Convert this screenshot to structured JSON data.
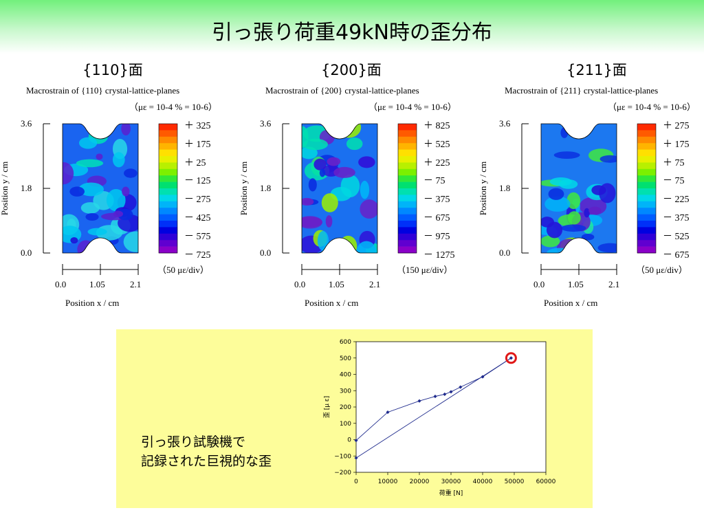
{
  "slide": {
    "title": "引っ張り荷重49kN時の歪分布",
    "accent_green": "#72f07c",
    "note_bg": "#fdfd9a",
    "note_line1": "引っ張り試験機で",
    "note_line2": "記録された巨視的な歪"
  },
  "maps": [
    {
      "section": "{110}面",
      "caption1": "Macrostrain of {110} crystal-lattice-planes",
      "caption2": "（με = 10-4 % = 10-6）",
      "scale_labels": [
        "＋ 325",
        "＋ 175",
        "＋ 25",
        "－ 125",
        "－ 275",
        "－ 425",
        "－ 575",
        "－ 725"
      ],
      "div_label": "（50 με/div）",
      "y_ticks": [
        "3.6",
        "1.8",
        "0.0"
      ],
      "x_ticks": [
        "0.0",
        "1.05",
        "2.1"
      ],
      "ylabel": "Position y / cm",
      "xlabel": "Position x / cm"
    },
    {
      "section": "{200}面",
      "caption1": "Macrostrain of {200} crystal-lattice-planes",
      "caption2": "（με = 10-4 % = 10-6）",
      "scale_labels": [
        "＋ 825",
        "＋ 525",
        "＋ 225",
        "－ 75",
        "－ 375",
        "－ 675",
        "－ 975",
        "－ 1275"
      ],
      "div_label": "（150 με/div）",
      "y_ticks": [
        "3.6",
        "1.8",
        "0.0"
      ],
      "x_ticks": [
        "0.0",
        "1.05",
        "2.1"
      ],
      "ylabel": "Position y / cm",
      "xlabel": "Position x / cm"
    },
    {
      "section": "{211}面",
      "caption1": "Macrostrain of {211} crystal-lattice-planes",
      "caption2": "（με = 10-4 % = 10-6）",
      "scale_labels": [
        "＋ 275",
        "＋ 175",
        "＋ 75",
        "－ 75",
        "－ 225",
        "－ 375",
        "－ 525",
        "－ 675"
      ],
      "div_label": "（50 με/div）",
      "y_ticks": [
        "3.6",
        "1.8",
        "0.0"
      ],
      "x_ticks": [
        "0.0",
        "1.05",
        "2.1"
      ],
      "ylabel": "Position y / cm",
      "xlabel": "Position x / cm"
    }
  ],
  "chart_data": {
    "type": "line",
    "xlabel": "荷重 [N]",
    "ylabel": "歪 [μ ε]",
    "xlim": [
      0,
      60000
    ],
    "ylim": [
      -200,
      600
    ],
    "x_ticks": [
      0,
      10000,
      20000,
      30000,
      40000,
      50000,
      60000
    ],
    "y_ticks": [
      -200,
      -100,
      0,
      100,
      200,
      300,
      400,
      500,
      600
    ],
    "series": [
      {
        "color": "#1e2a8c",
        "x": [
          0,
          10000,
          20000,
          25000,
          28000,
          30000,
          33000,
          40000,
          49000
        ],
        "y": [
          -5,
          168,
          237,
          265,
          278,
          293,
          322,
          385,
          500
        ]
      },
      {
        "color": "#1e2a8c",
        "x": [
          0,
          49000
        ],
        "y": [
          -112,
          500
        ]
      }
    ],
    "highlight": {
      "x": 49000,
      "y": 500,
      "color": "#e01818"
    }
  }
}
